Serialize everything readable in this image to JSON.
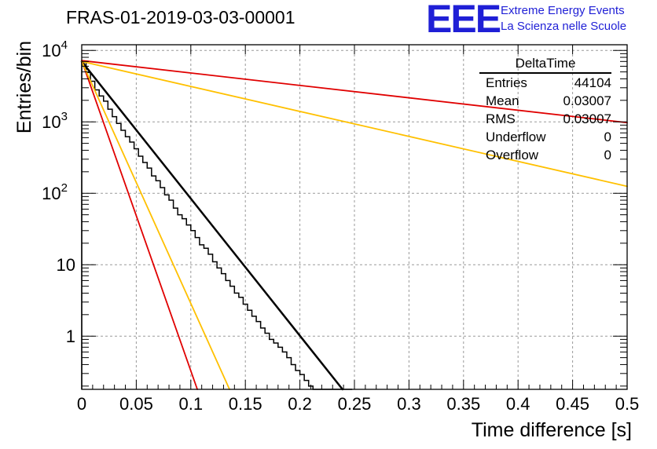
{
  "title": "FRAS-01-2019-03-03-00001",
  "logo": {
    "mark": "EEE",
    "line1": "Extreme Energy Events",
    "line2": "La Scienza nelle Scuole",
    "color": "#1f1fd6"
  },
  "stats": {
    "title": "DeltaTime",
    "rows": [
      {
        "label": "Entries",
        "value": "44104"
      },
      {
        "label": "Mean",
        "value": "0.03007"
      },
      {
        "label": "RMS",
        "value": "0.03007"
      },
      {
        "label": "Underflow",
        "value": "0"
      },
      {
        "label": "Overflow",
        "value": "0"
      }
    ]
  },
  "chart_data": {
    "type": "line",
    "title": "FRAS-01-2019-03-03-00001",
    "xlabel": "Time difference [s]",
    "ylabel": "Entries/bin",
    "xlim": [
      0,
      0.5
    ],
    "ylim": [
      0.18,
      12000
    ],
    "yscale": "log",
    "grid": true,
    "legend": "none",
    "xticks": [
      "0",
      "0.05",
      "0.1",
      "0.15",
      "0.2",
      "0.25",
      "0.3",
      "0.35",
      "0.4",
      "0.45",
      "0.5"
    ],
    "xtick_values": [
      0,
      0.05,
      0.1,
      0.15,
      0.2,
      0.25,
      0.3,
      0.35,
      0.4,
      0.45,
      0.5
    ],
    "yticks": [
      {
        "value": 1,
        "label": "1"
      },
      {
        "value": 10,
        "label": "10"
      },
      {
        "value": 100,
        "label": "10",
        "exp": "2"
      },
      {
        "value": 1000,
        "label": "10",
        "exp": "3"
      },
      {
        "value": 10000,
        "label": "10",
        "exp": "4"
      }
    ],
    "histogram": {
      "bin_width": 0.004,
      "color": "#000000",
      "values": [
        6800,
        4900,
        3700,
        2800,
        2300,
        1950,
        1500,
        1180,
        950,
        760,
        620,
        520,
        420,
        330,
        270,
        225,
        175,
        150,
        120,
        95,
        80,
        62,
        50,
        44,
        36,
        30,
        24,
        19,
        17,
        14,
        11,
        9,
        7.5,
        6,
        5,
        4,
        3.5,
        2.8,
        2.3,
        1.9,
        1.6,
        1.3,
        1.1,
        0.9,
        0.8,
        0.7,
        0.6,
        0.5,
        0.4,
        0.33,
        0.29,
        0.24,
        0.2,
        0.17,
        0.15,
        0.12,
        0.11,
        0.1,
        0.09,
        0.08,
        0.07,
        0.06
      ]
    },
    "series": [
      {
        "color": "#000000",
        "width": 2.5,
        "y0": 7000,
        "slope": -44.2
      },
      {
        "color": "#e00000",
        "width": 1.8,
        "y0": 7200,
        "slope": -4.0
      },
      {
        "color": "#ffc000",
        "width": 1.8,
        "y0": 7000,
        "slope": -8.05
      },
      {
        "color": "#e00000",
        "width": 1.8,
        "y0": 7200,
        "slope": -100.0
      },
      {
        "color": "#ffc000",
        "width": 1.8,
        "y0": 7000,
        "slope": -78.0
      }
    ]
  }
}
